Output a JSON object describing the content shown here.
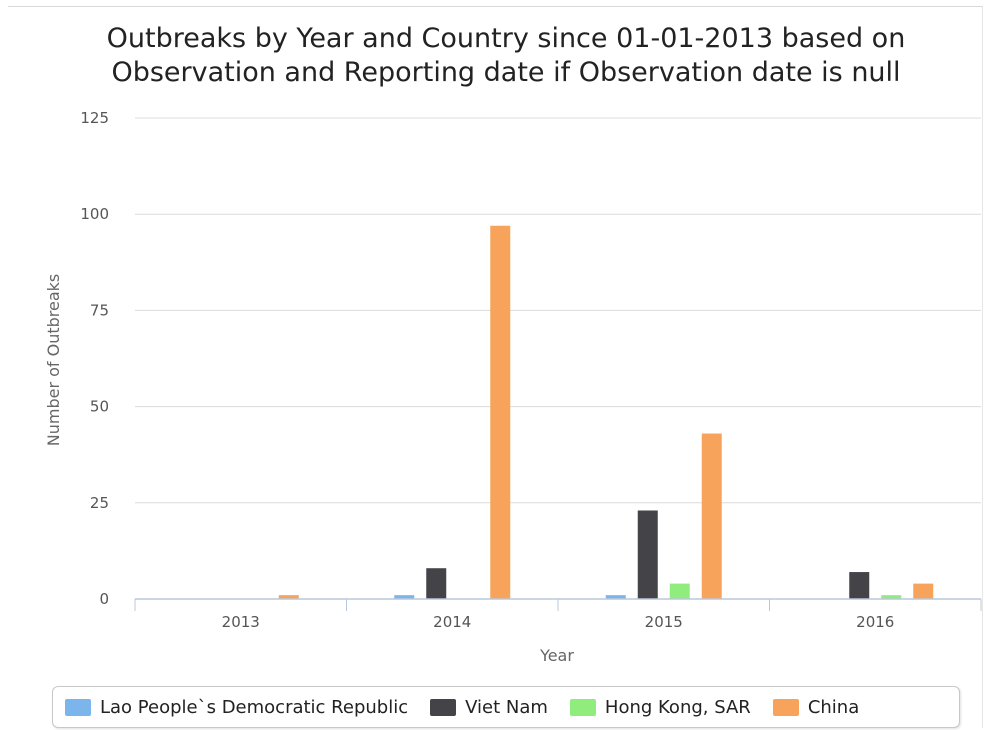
{
  "chart_data": {
    "type": "bar",
    "title_lines": [
      "Outbreaks by Year and Country since 01-01-2013 based on",
      "Observation and Reporting date if Observation date is null"
    ],
    "xlabel": "Year",
    "ylabel": "Number of Outbreaks",
    "categories": [
      "2013",
      "2014",
      "2015",
      "2016"
    ],
    "ylim": [
      0,
      125
    ],
    "yticks": [
      "0",
      "25",
      "50",
      "75",
      "100",
      "125"
    ],
    "grid": true,
    "legend_position": "bottom",
    "series": [
      {
        "name": "Lao People`s Democratic Republic",
        "color": "#7cb5ec",
        "values": [
          0,
          1,
          1,
          0
        ]
      },
      {
        "name": "Viet Nam",
        "color": "#434348",
        "values": [
          0,
          8,
          23,
          7
        ]
      },
      {
        "name": "Hong Kong, SAR",
        "color": "#90ed7d",
        "values": [
          0,
          0,
          4,
          1
        ]
      },
      {
        "name": "China",
        "color": "#f7a35c",
        "values": [
          1,
          97,
          43,
          4
        ]
      }
    ]
  }
}
